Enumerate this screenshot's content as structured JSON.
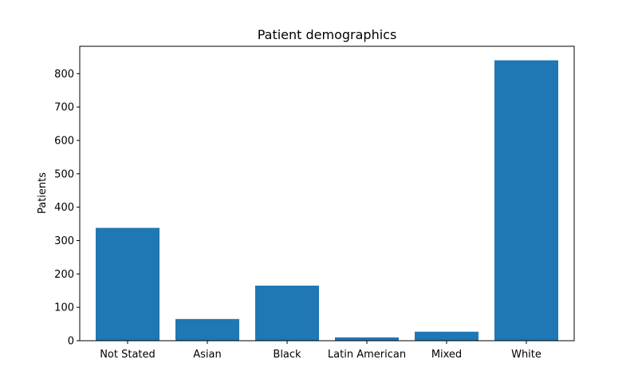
{
  "chart_data": {
    "type": "bar",
    "title": "Patient demographics",
    "xlabel": "",
    "ylabel": "Patients",
    "categories": [
      "Not Stated",
      "Asian",
      "Black",
      "Latin American",
      "Mixed",
      "White"
    ],
    "values": [
      338,
      65,
      165,
      10,
      27,
      840
    ],
    "ylim": [
      0,
      882
    ],
    "yticks": [
      0,
      100,
      200,
      300,
      400,
      500,
      600,
      700,
      800
    ],
    "grid": false,
    "legend": "none",
    "bar_color": "#1f77b4"
  }
}
